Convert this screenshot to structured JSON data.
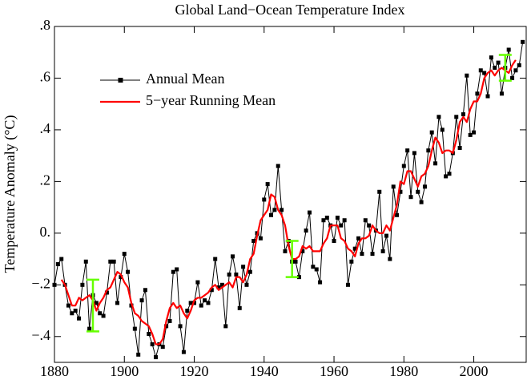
{
  "chart_data": {
    "type": "line",
    "title": "Global Land−Ocean Temperature Index",
    "ylabel": "Temperature Anomaly (°C)",
    "xlim": [
      1880,
      2015
    ],
    "xticks": [
      1880,
      1900,
      1920,
      1940,
      1960,
      1980,
      2000
    ],
    "ylim": [
      -0.5,
      0.8
    ],
    "yticks": [
      {
        "value": -0.4,
        "label": "−.4"
      },
      {
        "value": -0.2,
        "label": "−.2"
      },
      {
        "value": 0,
        "label": "0."
      },
      {
        "value": 0.2,
        "label": ".2"
      },
      {
        "value": 0.4,
        "label": ".4"
      },
      {
        "value": 0.6,
        "label": ".6"
      },
      {
        "value": 0.8,
        "label": ".8"
      }
    ],
    "legend": "upper left",
    "x": [
      1880,
      1881,
      1882,
      1883,
      1884,
      1885,
      1886,
      1887,
      1888,
      1889,
      1890,
      1891,
      1892,
      1893,
      1894,
      1895,
      1896,
      1897,
      1898,
      1899,
      1900,
      1901,
      1902,
      1903,
      1904,
      1905,
      1906,
      1907,
      1908,
      1909,
      1910,
      1911,
      1912,
      1913,
      1914,
      1915,
      1916,
      1917,
      1918,
      1919,
      1920,
      1921,
      1922,
      1923,
      1924,
      1925,
      1926,
      1927,
      1928,
      1929,
      1930,
      1931,
      1932,
      1933,
      1934,
      1935,
      1936,
      1937,
      1938,
      1939,
      1940,
      1941,
      1942,
      1943,
      1944,
      1945,
      1946,
      1947,
      1948,
      1949,
      1950,
      1951,
      1952,
      1953,
      1954,
      1955,
      1956,
      1957,
      1958,
      1959,
      1960,
      1961,
      1962,
      1963,
      1964,
      1965,
      1966,
      1967,
      1968,
      1969,
      1970,
      1971,
      1972,
      1973,
      1974,
      1975,
      1976,
      1977,
      1978,
      1979,
      1980,
      1981,
      1982,
      1983,
      1984,
      1985,
      1986,
      1987,
      1988,
      1989,
      1990,
      1991,
      1992,
      1993,
      1994,
      1995,
      1996,
      1997,
      1998,
      1999,
      2000,
      2001,
      2002,
      2003,
      2004,
      2005,
      2006,
      2007,
      2008,
      2009,
      2010,
      2011,
      2012,
      2013,
      2014
    ],
    "series": [
      {
        "name": "Annual Mean",
        "color": "#000000",
        "marker": "square",
        "values": [
          -0.2,
          -0.12,
          -0.1,
          -0.2,
          -0.28,
          -0.31,
          -0.3,
          -0.33,
          -0.2,
          -0.11,
          -0.37,
          -0.24,
          -0.27,
          -0.31,
          -0.32,
          -0.23,
          -0.11,
          -0.11,
          -0.27,
          -0.17,
          -0.08,
          -0.15,
          -0.28,
          -0.37,
          -0.47,
          -0.26,
          -0.22,
          -0.39,
          -0.43,
          -0.48,
          -0.43,
          -0.44,
          -0.36,
          -0.34,
          -0.15,
          -0.14,
          -0.36,
          -0.46,
          -0.3,
          -0.27,
          -0.27,
          -0.19,
          -0.28,
          -0.26,
          -0.27,
          -0.22,
          -0.1,
          -0.21,
          -0.2,
          -0.36,
          -0.16,
          -0.09,
          -0.16,
          -0.29,
          -0.13,
          -0.2,
          -0.15,
          -0.03,
          0,
          -0.02,
          0.13,
          0.19,
          0.07,
          0.09,
          0.26,
          0.09,
          -0.07,
          -0.03,
          -0.11,
          -0.11,
          -0.17,
          -0.07,
          0.01,
          0.08,
          -0.13,
          -0.14,
          -0.19,
          0.05,
          0.06,
          0.03,
          -0.03,
          0.06,
          0.03,
          0.05,
          -0.2,
          -0.11,
          -0.06,
          -0.02,
          -0.08,
          0.05,
          0.03,
          -0.08,
          0.01,
          0.16,
          -0.07,
          -0.01,
          -0.1,
          0.18,
          0.07,
          0.16,
          0.26,
          0.32,
          0.14,
          0.31,
          0.16,
          0.12,
          0.18,
          0.32,
          0.39,
          0.27,
          0.45,
          0.4,
          0.22,
          0.23,
          0.31,
          0.45,
          0.33,
          0.46,
          0.61,
          0.38,
          0.39,
          0.54,
          0.63,
          0.62,
          0.53,
          0.68,
          0.64,
          0.66,
          0.54,
          0.64,
          0.71,
          0.6,
          0.63,
          0.65,
          0.74
        ]
      },
      {
        "name": "5−year Running Mean",
        "color": "#ff0000",
        "values": [
          null,
          null,
          -0.18,
          -0.2,
          -0.24,
          -0.28,
          -0.28,
          -0.25,
          -0.26,
          -0.25,
          -0.24,
          -0.26,
          -0.3,
          -0.27,
          -0.25,
          -0.22,
          -0.21,
          -0.18,
          -0.15,
          -0.16,
          -0.19,
          -0.21,
          -0.27,
          -0.31,
          -0.32,
          -0.34,
          -0.35,
          -0.36,
          -0.39,
          -0.43,
          -0.43,
          -0.41,
          -0.34,
          -0.29,
          -0.27,
          -0.29,
          -0.28,
          -0.31,
          -0.33,
          -0.3,
          -0.26,
          -0.25,
          -0.25,
          -0.24,
          -0.23,
          -0.21,
          -0.2,
          -0.22,
          -0.21,
          -0.2,
          -0.19,
          -0.21,
          -0.17,
          -0.17,
          -0.19,
          -0.16,
          -0.1,
          -0.08,
          -0.01,
          0.05,
          0.07,
          0.09,
          0.15,
          0.14,
          0.09,
          0.07,
          0.03,
          -0.05,
          -0.1,
          -0.1,
          -0.09,
          -0.05,
          -0.06,
          -0.05,
          -0.07,
          -0.07,
          -0.07,
          -0.04,
          -0.02,
          0.03,
          0.03,
          0.03,
          -0.02,
          -0.03,
          -0.06,
          -0.07,
          -0.09,
          -0.04,
          -0.02,
          -0.02,
          -0.01,
          0.03,
          0.01,
          0,
          0,
          0.03,
          0.01,
          0.06,
          0.11,
          0.2,
          0.19,
          0.24,
          0.24,
          0.21,
          0.18,
          0.22,
          0.23,
          0.26,
          0.32,
          0.37,
          0.35,
          0.31,
          0.32,
          0.32,
          0.31,
          0.36,
          0.43,
          0.45,
          0.43,
          0.48,
          0.51,
          0.51,
          0.54,
          0.6,
          0.62,
          0.63,
          0.61,
          0.63,
          0.64,
          0.63,
          0.62,
          0.65,
          0.67,
          null,
          null
        ]
      }
    ],
    "error_bars": {
      "color": "#66ff00",
      "x": [
        1891,
        1948,
        2009
      ],
      "values": [
        -0.28,
        -0.1,
        0.64
      ],
      "errors": [
        0.1,
        0.07,
        0.05
      ]
    }
  }
}
